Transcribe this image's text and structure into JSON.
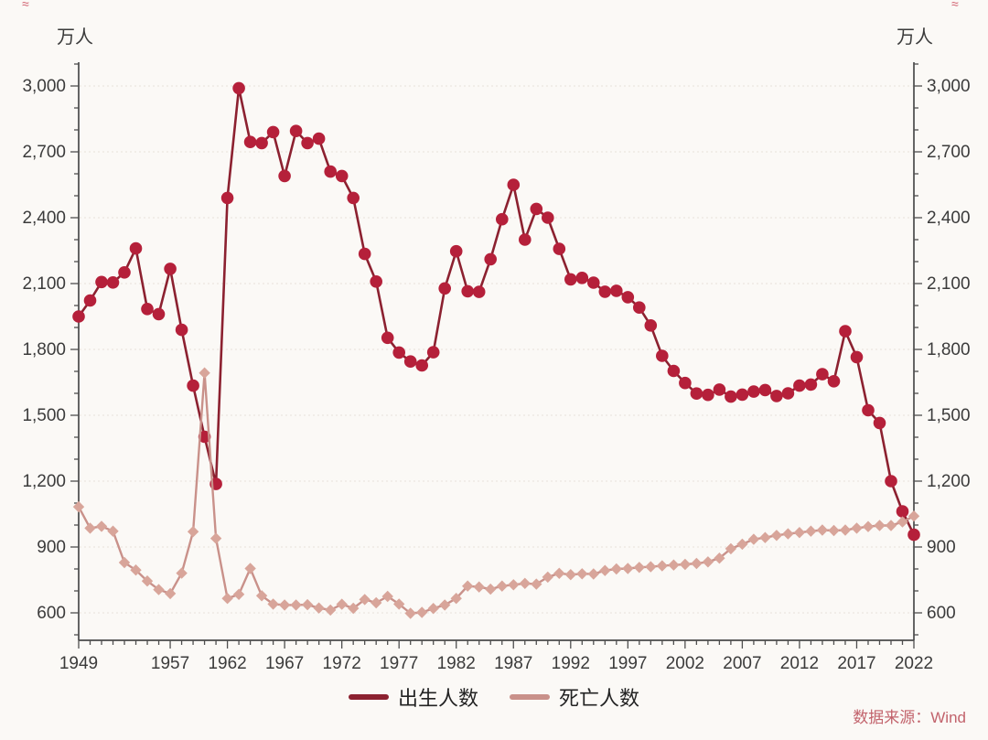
{
  "decor": {
    "top_left_mark": "≈",
    "top_right_mark": "≈"
  },
  "chart_data": {
    "type": "line",
    "title": "",
    "unit_label_left": "万人",
    "unit_label_right": "万人",
    "source": "数据来源：Wind",
    "grid": "horizontal-dashed",
    "legend_position": "bottom-center",
    "ylim": [
      600,
      3000
    ],
    "y_ticks": [
      600,
      900,
      1200,
      1500,
      1800,
      2100,
      2400,
      2700,
      3000
    ],
    "y_minor_step": 100,
    "x_tick_labels": [
      1949,
      1957,
      1962,
      1967,
      1972,
      1977,
      1982,
      1987,
      1992,
      1997,
      2002,
      2007,
      2012,
      2017,
      2022
    ],
    "x": [
      1949,
      1950,
      1951,
      1952,
      1953,
      1954,
      1955,
      1956,
      1957,
      1958,
      1959,
      1960,
      1961,
      1962,
      1963,
      1964,
      1965,
      1966,
      1967,
      1968,
      1969,
      1970,
      1971,
      1972,
      1973,
      1974,
      1975,
      1976,
      1977,
      1978,
      1979,
      1980,
      1981,
      1982,
      1983,
      1984,
      1985,
      1986,
      1987,
      1988,
      1989,
      1990,
      1991,
      1992,
      1993,
      1994,
      1995,
      1996,
      1997,
      1998,
      1999,
      2000,
      2001,
      2002,
      2003,
      2004,
      2005,
      2006,
      2007,
      2008,
      2009,
      2010,
      2011,
      2012,
      2013,
      2014,
      2015,
      2016,
      2017,
      2018,
      2019,
      2020,
      2021,
      2022
    ],
    "series": [
      {
        "id": "births-series",
        "name": "出生人数",
        "marker": "circle",
        "marker_size": 6.8,
        "marker_color": "#b5203a",
        "line_color": "#8c2130",
        "line_width": 2.6,
        "values": [
          1950,
          2023,
          2107,
          2105,
          2151,
          2260,
          1984,
          1961,
          2167,
          1889,
          1635,
          1402,
          1187,
          2490,
          2990,
          2745,
          2740,
          2790,
          2590,
          2795,
          2740,
          2760,
          2610,
          2590,
          2490,
          2235,
          2109,
          1853,
          1786,
          1745,
          1727,
          1787,
          2078,
          2247,
          2065,
          2062,
          2211,
          2393,
          2550,
          2300,
          2440,
          2400,
          2258,
          2119,
          2126,
          2104,
          2063,
          2067,
          2038,
          1991,
          1909,
          1771,
          1702,
          1647,
          1599,
          1593,
          1617,
          1585,
          1594,
          1608,
          1615,
          1588,
          1600,
          1635,
          1640,
          1687,
          1655,
          1883,
          1765,
          1523,
          1465,
          1200,
          1062,
          956
        ]
      },
      {
        "id": "deaths-series",
        "name": "死亡人数",
        "marker": "diamond",
        "marker_size": 6.2,
        "marker_color": "#d8a59a",
        "line_color": "#c9918a",
        "line_width": 2.4,
        "values": [
          1083,
          986,
          994,
          972,
          829,
          795,
          745,
          706,
          688,
          781,
          970,
          1693,
          939,
          666,
          684,
          802,
          678,
          640,
          636,
          636,
          637,
          622,
          613,
          639,
          621,
          661,
          646,
          675,
          640,
          598,
          602,
          620,
          636,
          666,
          722,
          718,
          708,
          722,
          728,
          734,
          731,
          763,
          780,
          774,
          778,
          777,
          793,
          800,
          802,
          807,
          810,
          814,
          818,
          821,
          825,
          832,
          849,
          892,
          913,
          935,
          943,
          953,
          960,
          966,
          972,
          977,
          975,
          977,
          986,
          993,
          998,
          998,
          1014,
          1041
        ]
      }
    ]
  }
}
